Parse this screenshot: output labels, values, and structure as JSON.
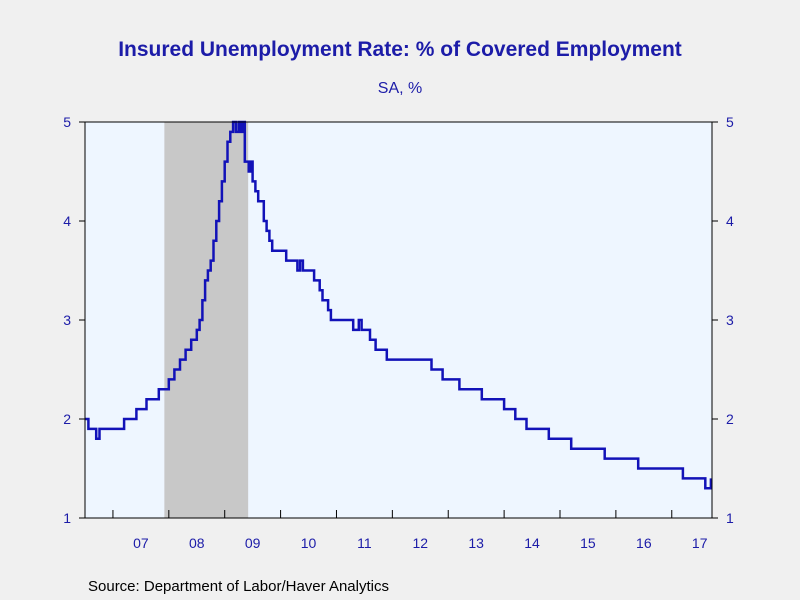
{
  "chart_data": {
    "type": "line",
    "title": "Insured Unemployment Rate: % of Covered Employment",
    "subtitle": "SA, %",
    "source": "Source:  Department of Labor/Haver Analytics",
    "y_ticks": [
      "1",
      "2",
      "3",
      "4",
      "5"
    ],
    "ylim": [
      1,
      5
    ],
    "xlim": [
      2006.5,
      2017.72
    ],
    "x_ticks": [
      {
        "label": "07",
        "year": 2007
      },
      {
        "label": "08",
        "year": 2008
      },
      {
        "label": "09",
        "year": 2009
      },
      {
        "label": "10",
        "year": 2010
      },
      {
        "label": "11",
        "year": 2011
      },
      {
        "label": "12",
        "year": 2012
      },
      {
        "label": "13",
        "year": 2013
      },
      {
        "label": "14",
        "year": 2014
      },
      {
        "label": "15",
        "year": 2015
      },
      {
        "label": "16",
        "year": 2016
      },
      {
        "label": "17",
        "year": 2017
      }
    ],
    "recession": {
      "start": 2007.92,
      "end": 2009.42
    },
    "grid": false,
    "colors": {
      "line": "#1212b8",
      "recession": "#c8c8c8",
      "plot_bg": "#eef6ff",
      "text": "#1c1ca8"
    },
    "series": [
      {
        "x": [
          2006.5,
          2006.56,
          2006.6,
          2006.7,
          2006.76,
          2006.8,
          2006.85,
          2006.9,
          2007.0,
          2007.1,
          2007.2,
          2007.3,
          2007.42,
          2007.5,
          2007.6,
          2007.7,
          2007.82,
          2007.92,
          2008.0,
          2008.1,
          2008.2,
          2008.3,
          2008.4,
          2008.5,
          2008.55,
          2008.6,
          2008.65,
          2008.7,
          2008.75,
          2008.8,
          2008.85,
          2008.9,
          2008.95,
          2009.0,
          2009.05,
          2009.1,
          2009.15,
          2009.2,
          2009.25,
          2009.28,
          2009.32,
          2009.36,
          2009.4,
          2009.43,
          2009.47,
          2009.5,
          2009.55,
          2009.6,
          2009.7,
          2009.75,
          2009.8,
          2009.85,
          2009.9,
          2009.95,
          2010.0,
          2010.1,
          2010.2,
          2010.3,
          2010.35,
          2010.4,
          2010.5,
          2010.6,
          2010.7,
          2010.75,
          2010.8,
          2010.85,
          2010.9,
          2010.95,
          2011.0,
          2011.1,
          2011.2,
          2011.3,
          2011.4,
          2011.45,
          2011.5,
          2011.6,
          2011.7,
          2011.8,
          2011.9,
          2012.0,
          2012.2,
          2012.4,
          2012.6,
          2012.7,
          2012.8,
          2012.9,
          2013.0,
          2013.2,
          2013.4,
          2013.6,
          2013.7,
          2013.8,
          2013.9,
          2014.0,
          2014.2,
          2014.4,
          2014.6,
          2014.8,
          2015.0,
          2015.2,
          2015.4,
          2015.6,
          2015.8,
          2016.0,
          2016.2,
          2016.4,
          2016.6,
          2016.8,
          2017.0,
          2017.2,
          2017.4,
          2017.5,
          2017.6,
          2017.7
        ],
        "values": [
          2.0,
          1.9,
          1.9,
          1.8,
          1.9,
          1.9,
          1.9,
          1.9,
          1.9,
          1.9,
          2.0,
          2.0,
          2.1,
          2.1,
          2.2,
          2.2,
          2.3,
          2.3,
          2.4,
          2.5,
          2.6,
          2.7,
          2.8,
          2.9,
          3.0,
          3.2,
          3.4,
          3.5,
          3.6,
          3.8,
          4.0,
          4.2,
          4.4,
          4.6,
          4.8,
          4.9,
          5.0,
          4.9,
          5.0,
          4.9,
          5.0,
          4.6,
          4.6,
          4.5,
          4.6,
          4.4,
          4.3,
          4.2,
          4.0,
          3.9,
          3.8,
          3.7,
          3.7,
          3.7,
          3.7,
          3.6,
          3.6,
          3.5,
          3.6,
          3.5,
          3.5,
          3.4,
          3.3,
          3.2,
          3.2,
          3.1,
          3.0,
          3.0,
          3.0,
          3.0,
          3.0,
          2.9,
          3.0,
          2.9,
          2.9,
          2.8,
          2.7,
          2.7,
          2.6,
          2.6,
          2.6,
          2.6,
          2.6,
          2.5,
          2.5,
          2.4,
          2.4,
          2.3,
          2.3,
          2.2,
          2.2,
          2.2,
          2.2,
          2.1,
          2.0,
          1.9,
          1.9,
          1.8,
          1.8,
          1.7,
          1.7,
          1.7,
          1.6,
          1.6,
          1.6,
          1.5,
          1.5,
          1.5,
          1.5,
          1.4,
          1.4,
          1.4,
          1.3,
          1.4
        ]
      }
    ]
  }
}
